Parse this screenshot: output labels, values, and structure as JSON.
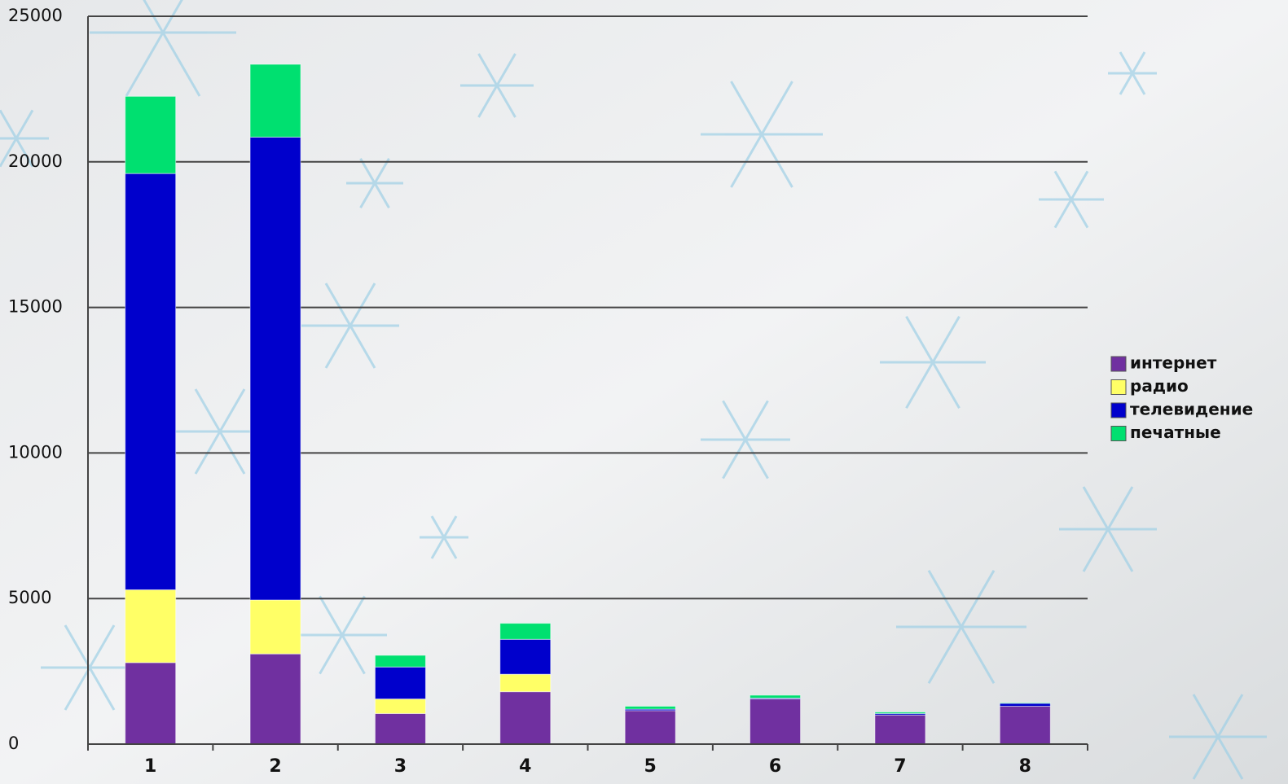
{
  "chart_data": {
    "type": "bar",
    "stacked": true,
    "categories": [
      "1",
      "2",
      "3",
      "4",
      "5",
      "6",
      "7",
      "8"
    ],
    "series": [
      {
        "name": "интернет",
        "color": "#7030a0",
        "values": [
          2800,
          3100,
          1050,
          1800,
          1150,
          1550,
          1000,
          1300
        ]
      },
      {
        "name": "радио",
        "color": "#ffff66",
        "values": [
          2500,
          1850,
          500,
          600,
          0,
          0,
          0,
          0
        ]
      },
      {
        "name": "телевидение",
        "color": "#0000cc",
        "values": [
          14300,
          15900,
          1100,
          1200,
          50,
          30,
          50,
          100
        ]
      },
      {
        "name": "печатные",
        "color": "#00e070",
        "values": [
          2650,
          2500,
          400,
          550,
          100,
          100,
          50,
          20
        ]
      }
    ],
    "ylim": [
      0,
      25000
    ],
    "yticks": [
      0,
      5000,
      10000,
      15000,
      20000,
      25000
    ],
    "grid": true,
    "legend": "right"
  }
}
